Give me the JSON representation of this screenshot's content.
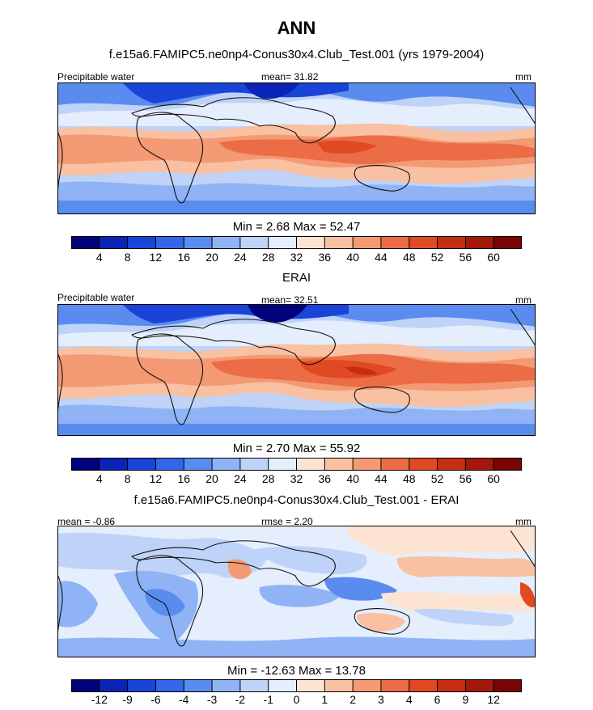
{
  "figure": {
    "title": "ANN"
  },
  "chart_data": [
    {
      "type": "heatmap",
      "title": "f.e15a6.FAMIPC5.ne0np4-Conus30x4.Club_Test.001 (yrs 1979-2004)",
      "left_label": "Precipitable water",
      "center_label": "mean=  31.82",
      "units": "mm",
      "minmax": "Min =   2.68 Max =  52.47",
      "colorbar_ticks": [
        "4",
        "8",
        "12",
        "16",
        "20",
        "24",
        "28",
        "32",
        "36",
        "40",
        "44",
        "48",
        "52",
        "56",
        "60"
      ],
      "colors": [
        "#02027c",
        "#0a24b6",
        "#1a44d8",
        "#3366e8",
        "#5a8cf0",
        "#8fb3f4",
        "#bfd3f8",
        "#e4eefc",
        "#fde4d2",
        "#f9c0a2",
        "#f39a74",
        "#ec6c45",
        "#e04a22",
        "#c52e12",
        "#a3180a",
        "#7a0505"
      ]
    },
    {
      "type": "heatmap",
      "title": "ERAI",
      "left_label": "Precipitable water",
      "center_label": "mean=  32.51",
      "units": "mm",
      "minmax": "Min =   2.70 Max =  55.92",
      "colorbar_ticks": [
        "4",
        "8",
        "12",
        "16",
        "20",
        "24",
        "28",
        "32",
        "36",
        "40",
        "44",
        "48",
        "52",
        "56",
        "60"
      ],
      "colors": [
        "#02027c",
        "#0a24b6",
        "#1a44d8",
        "#3366e8",
        "#5a8cf0",
        "#8fb3f4",
        "#bfd3f8",
        "#e4eefc",
        "#fde4d2",
        "#f9c0a2",
        "#f39a74",
        "#ec6c45",
        "#e04a22",
        "#c52e12",
        "#a3180a",
        "#7a0505"
      ]
    },
    {
      "type": "heatmap",
      "title": "f.e15a6.FAMIPC5.ne0np4-Conus30x4.Club_Test.001 - ERAI",
      "left_label": "mean =  -0.86",
      "center_label": "rmse =   2.20",
      "units": "mm",
      "minmax": "Min = -12.63 Max =  13.78",
      "colorbar_ticks": [
        "-12",
        "-9",
        "-6",
        "-4",
        "-3",
        "-2",
        "-1",
        "0",
        "1",
        "2",
        "3",
        "4",
        "6",
        "9",
        "12"
      ],
      "colors": [
        "#02027c",
        "#0a24b6",
        "#1a44d8",
        "#3366e8",
        "#5a8cf0",
        "#8fb3f4",
        "#bfd3f8",
        "#e4eefc",
        "#fde4d2",
        "#f9c0a2",
        "#f39a74",
        "#ec6c45",
        "#e04a22",
        "#c52e12",
        "#a3180a",
        "#7a0505"
      ]
    }
  ]
}
